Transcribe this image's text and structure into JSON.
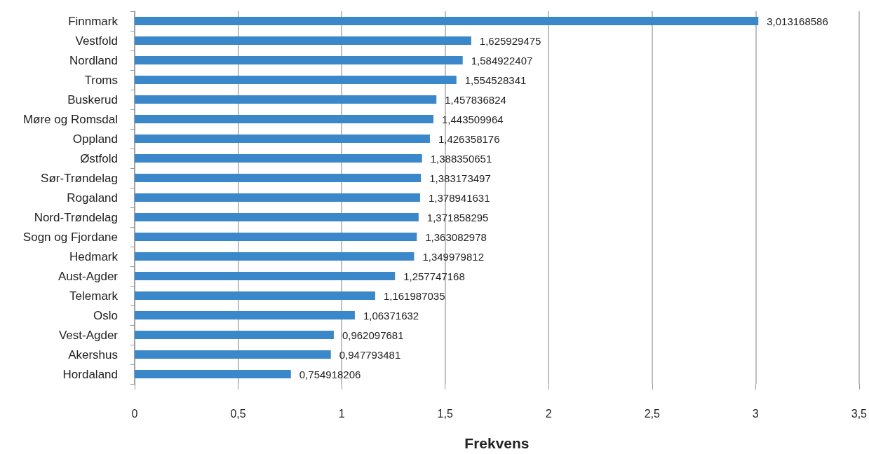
{
  "chart_data": {
    "type": "bar",
    "orientation": "horizontal",
    "xlabel": "Frekvens",
    "categories": [
      "Finnmark",
      "Vestfold",
      "Nordland",
      "Troms",
      "Buskerud",
      "Møre og Romsdal",
      "Oppland",
      "Østfold",
      "Sør-Trøndelag",
      "Rogaland",
      "Nord-Trøndelag",
      "Sogn og Fjordane",
      "Hedmark",
      "Aust-Agder",
      "Telemark",
      "Oslo",
      "Vest-Agder",
      "Akershus",
      "Hordaland"
    ],
    "values": [
      3.013168586,
      1.625929475,
      1.584922407,
      1.554528341,
      1.457836824,
      1.443509964,
      1.426358176,
      1.388350651,
      1.383173497,
      1.378941631,
      1.371858295,
      1.363082978,
      1.349979812,
      1.257747168,
      1.161987035,
      1.06371632,
      0.962097681,
      0.947793481,
      0.754918206
    ],
    "value_labels": [
      "3,013168586",
      "1,625929475",
      "1,584922407",
      "1,554528341",
      "1,457836824",
      "1,443509964",
      "1,426358176",
      "1,388350651",
      "1,383173497",
      "1,378941631",
      "1,371858295",
      "1,363082978",
      "1,349979812",
      "1,257747168",
      "1,161987035",
      "1,06371632",
      "0,962097681",
      "0,947793481",
      "0,754918206"
    ],
    "color": "#3a87c9",
    "xlim": [
      0,
      3.5
    ],
    "xticks": [
      0,
      {
        "value": 0.5,
        "label": "0,5"
      },
      1,
      {
        "value": 1.5,
        "label": "1,5"
      },
      2,
      {
        "value": 2.5,
        "label": "2,5"
      },
      3,
      {
        "value": 3.5,
        "label": "3,5"
      }
    ],
    "grid": "x"
  }
}
